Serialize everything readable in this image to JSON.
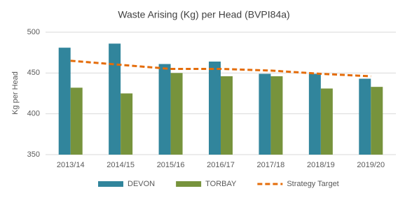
{
  "chart_data": {
    "type": "bar",
    "title": "Waste Arising (Kg) per Head (BVPI84a)",
    "y_label": "Kg per Head",
    "categories": [
      "2013/14",
      "2014/15",
      "2015/16",
      "2016/17",
      "2017/18",
      "2018/19",
      "2019/20"
    ],
    "series": [
      {
        "name": "DEVON",
        "color": "#31859c",
        "type": "bar",
        "values": [
          481,
          486,
          461,
          464,
          449,
          449,
          443
        ]
      },
      {
        "name": "TORBAY",
        "color": "#77933c",
        "type": "bar",
        "values": [
          432,
          425,
          450,
          446,
          446,
          431,
          433
        ]
      },
      {
        "name": "Strategy Target",
        "color": "#e46c0a",
        "type": "line",
        "dashed": true,
        "values": [
          465,
          460,
          455,
          455,
          453,
          449,
          446
        ]
      }
    ],
    "ylim": [
      350,
      500
    ],
    "yticks": [
      350,
      400,
      450,
      500
    ],
    "grid": true,
    "legend": "bottom"
  }
}
